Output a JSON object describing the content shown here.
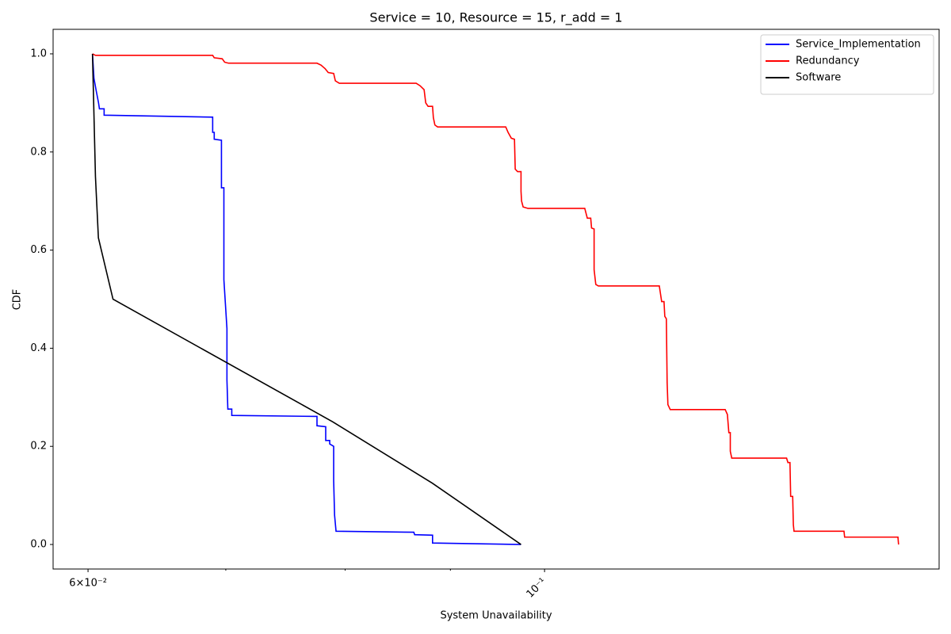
{
  "chart_data": {
    "type": "line",
    "title": "Service = 10, Resource = 15, r_add = 1",
    "x_label": "System Unavailability",
    "y_label": "CDF",
    "xscale": "log",
    "xlim": [
      0.0577,
      0.1555
    ],
    "ylim": [
      -0.05,
      1.05
    ],
    "xticks": [
      {
        "value": 0.06,
        "label": "6×10⁻²"
      },
      {
        "value": 0.1,
        "label": "10⁻¹"
      }
    ],
    "xminorticks": [
      0.07,
      0.08,
      0.09
    ],
    "yticks": [
      {
        "value": 0,
        "label": "0.0"
      },
      {
        "value": 0.2,
        "label": "0.2"
      },
      {
        "value": 0.4,
        "label": "0.4"
      },
      {
        "value": 0.6,
        "label": "0.6"
      },
      {
        "value": 0.8,
        "label": "0.8"
      },
      {
        "value": 1,
        "label": "1.0"
      }
    ],
    "legend": "upper right",
    "series": [
      {
        "name": "Service_Implementation",
        "color": "#0000ff",
        "x": [
          0.0603,
          0.0604,
          0.06055,
          0.06071,
          0.06077,
          0.06109,
          0.06109,
          0.06898,
          0.06898,
          0.0691,
          0.0691,
          0.06966,
          0.06966,
          0.06985,
          0.06985,
          0.07009,
          0.07009,
          0.07016,
          0.07047,
          0.07047,
          0.07752,
          0.07752,
          0.07828,
          0.07828,
          0.07863,
          0.07863,
          0.07898,
          0.07898,
          0.07906,
          0.07919,
          0.08639,
          0.08647,
          0.08822,
          0.08822,
          0.0974
        ],
        "values": [
          1.0,
          0.95,
          0.925,
          0.9,
          0.888,
          0.888,
          0.875,
          0.871,
          0.84,
          0.84,
          0.826,
          0.824,
          0.727,
          0.727,
          0.54,
          0.44,
          0.335,
          0.276,
          0.276,
          0.263,
          0.261,
          0.242,
          0.24,
          0.212,
          0.212,
          0.205,
          0.2,
          0.13,
          0.06,
          0.027,
          0.025,
          0.02,
          0.019,
          0.003,
          0.0
        ]
      },
      {
        "name": "Redundancy",
        "color": "#ff0000",
        "x": [
          0.0603,
          0.0605,
          0.06898,
          0.0691,
          0.06972,
          0.06991,
          0.07022,
          0.07752,
          0.07787,
          0.07822,
          0.0785,
          0.07898,
          0.07913,
          0.07948,
          0.08662,
          0.087,
          0.08739,
          0.08755,
          0.08778,
          0.08822,
          0.0883,
          0.08845,
          0.08872,
          0.09575,
          0.096,
          0.09635,
          0.09669,
          0.09677,
          0.09703,
          0.0974,
          0.0974,
          0.09746,
          0.09763,
          0.09816,
          0.1046,
          0.1049,
          0.1053,
          0.1054,
          0.1057,
          0.1057,
          0.1059,
          0.1062,
          0.1137,
          0.114,
          0.1143,
          0.1144,
          0.1146,
          0.1147,
          0.1148,
          0.1151,
          0.1224,
          0.1227,
          0.1229,
          0.1231,
          0.1231,
          0.1233,
          0.1311,
          0.1313,
          0.1316,
          0.1317,
          0.132,
          0.1321,
          0.1322,
          0.1398,
          0.1399,
          0.1485,
          0.1486
        ],
        "values": [
          1.0,
          0.997,
          0.997,
          0.992,
          0.99,
          0.983,
          0.981,
          0.981,
          0.977,
          0.97,
          0.962,
          0.96,
          0.945,
          0.94,
          0.94,
          0.935,
          0.927,
          0.9,
          0.893,
          0.893,
          0.87,
          0.855,
          0.851,
          0.851,
          0.84,
          0.828,
          0.826,
          0.765,
          0.76,
          0.76,
          0.72,
          0.7,
          0.688,
          0.685,
          0.685,
          0.665,
          0.665,
          0.645,
          0.643,
          0.56,
          0.53,
          0.527,
          0.527,
          0.495,
          0.495,
          0.465,
          0.46,
          0.33,
          0.285,
          0.275,
          0.275,
          0.265,
          0.228,
          0.228,
          0.19,
          0.176,
          0.176,
          0.167,
          0.167,
          0.098,
          0.098,
          0.04,
          0.027,
          0.027,
          0.015,
          0.015,
          0.0
        ]
      },
      {
        "name": "Software",
        "color": "#000000",
        "x": [
          0.0603,
          0.0605,
          0.0607,
          0.0617,
          0.0789,
          0.0882,
          0.0974
        ],
        "values": [
          1.0,
          0.75,
          0.625,
          0.5,
          0.25,
          0.125,
          0.0
        ]
      }
    ]
  }
}
